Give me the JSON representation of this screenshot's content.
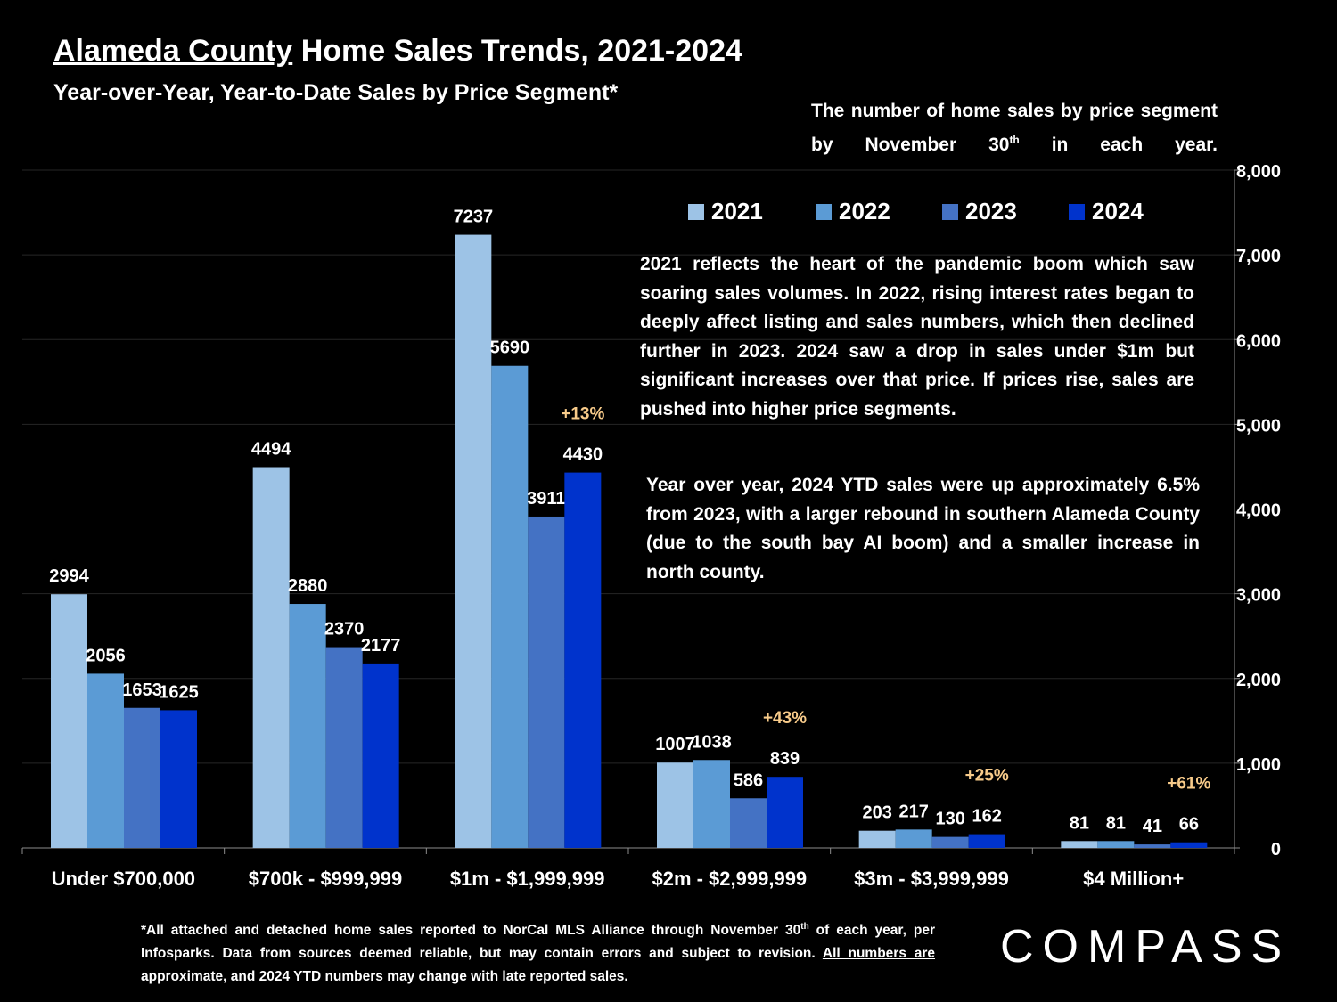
{
  "header": {
    "title_underlined": "Alameda County",
    "title_rest": " Home Sales Trends, 2021-2024",
    "subtitle": "Year-over-Year, Year-to-Date Sales by Price Segment*"
  },
  "note": {
    "line1": "The number of home sales by price",
    "line2_pre": "segment by November 30",
    "line2_sup": "th",
    "line2_post": " in each year."
  },
  "commentary": {
    "para1": "2021 reflects the heart of the pandemic boom which saw soaring sales volumes. In 2022, rising interest rates began to deeply affect listing and sales numbers, which then declined further in 2023. 2024 saw a drop in sales under $1m but significant increases over that price. If prices rise, sales are pushed into higher price segments.",
    "para2": "Year over year, 2024 YTD sales were up approximately 6.5% from 2023, with a larger rebound in southern Alameda County (due to the south bay AI boom) and a smaller increase in north county."
  },
  "footnote": {
    "part1": "*All attached and detached home sales reported to NorCal MLS Alliance through November 30",
    "sup": "th",
    "part2": " of each year, per Infosparks. Data from sources deemed reliable, but may contain errors and subject to revision. ",
    "underlined": "All numbers are approximate, and 2024 YTD numbers may change with late reported sales",
    "end": "."
  },
  "logo": {
    "text": "COMPASS"
  },
  "colors": {
    "background": "#000000",
    "s2021": "#9dc3e6",
    "s2022": "#5b9bd5",
    "s2023": "#4472c4",
    "s2024": "#0033cc",
    "annotation": "#f8cb8a"
  },
  "chart_data": {
    "type": "bar",
    "categories": [
      "Under $700,000",
      "$700k - $999,999",
      "$1m - $1,999,999",
      "$2m - $2,999,999",
      "$3m - $3,999,999",
      "$4 Million+"
    ],
    "series": [
      {
        "name": "2021",
        "values": [
          2994,
          4494,
          7237,
          1007,
          203,
          81
        ]
      },
      {
        "name": "2022",
        "values": [
          2056,
          2880,
          5690,
          1038,
          217,
          81
        ]
      },
      {
        "name": "2023",
        "values": [
          1653,
          2370,
          3911,
          586,
          130,
          41
        ]
      },
      {
        "name": "2024",
        "values": [
          1625,
          2177,
          4430,
          839,
          162,
          66
        ]
      }
    ],
    "annotations": [
      {
        "category": "$1m - $1,999,999",
        "text": "+13%"
      },
      {
        "category": "$2m - $2,999,999",
        "text": "+43%"
      },
      {
        "category": "$3m - $3,999,999",
        "text": "+25%"
      },
      {
        "category": "$4 Million+",
        "text": "+61%"
      }
    ],
    "ylim": [
      0,
      8000
    ],
    "yticks": [
      "0",
      "1,000",
      "2,000",
      "3,000",
      "4,000",
      "5,000",
      "6,000",
      "7,000",
      "8,000"
    ],
    "ytick_values": [
      0,
      1000,
      2000,
      3000,
      4000,
      5000,
      6000,
      7000,
      8000
    ],
    "y_axis_side": "right",
    "grid": true,
    "legend_position": "top-right"
  }
}
